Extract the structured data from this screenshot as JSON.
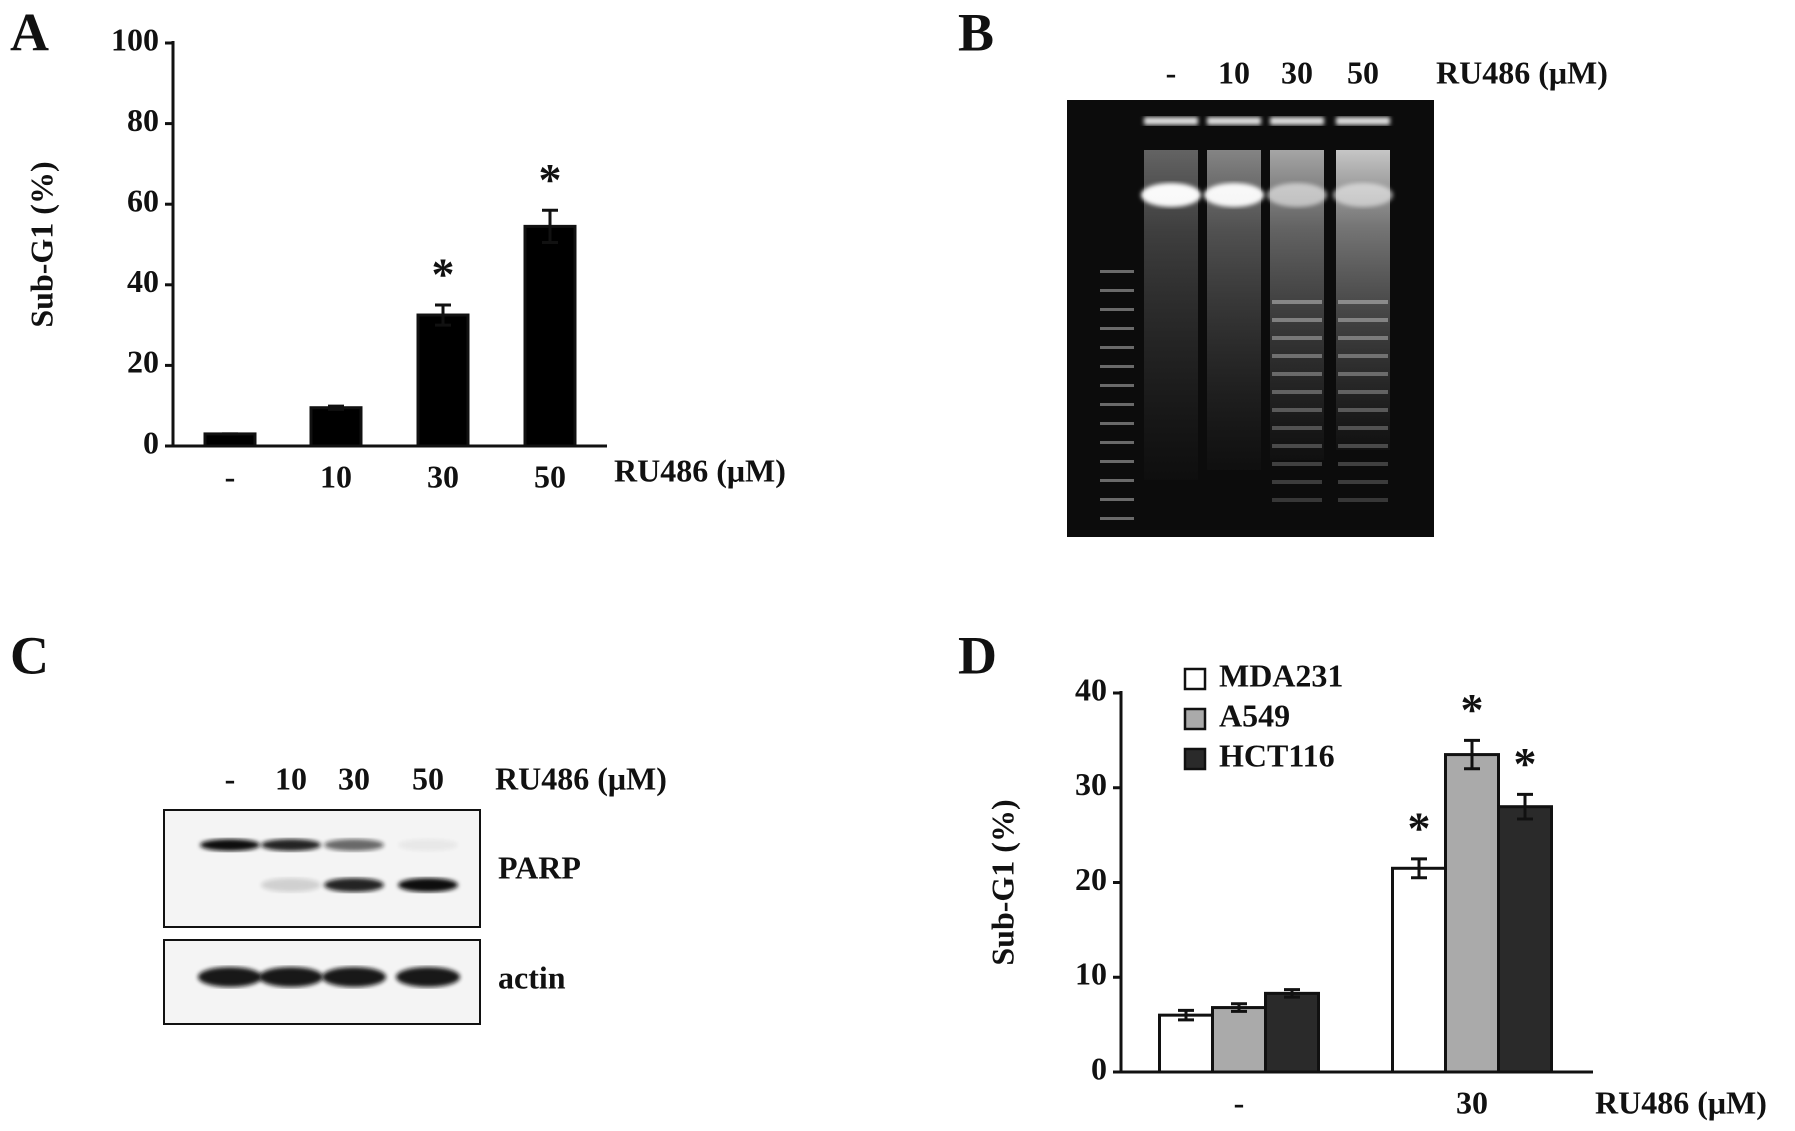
{
  "chart_data": [
    {
      "type": "bar",
      "panel": "A",
      "ylabel": "Sub-G1 (%)",
      "xlabel": "RU486 (μM)",
      "categories": [
        "-",
        "10",
        "30",
        "50"
      ],
      "values": [
        3,
        9.5,
        32.5,
        54.5
      ],
      "errors": [
        0,
        0.4,
        2.5,
        4
      ],
      "significance": [
        null,
        null,
        "*",
        "*"
      ],
      "color": "#000000",
      "ylim": [
        0,
        100
      ],
      "yticks": [
        0,
        20,
        40,
        60,
        80,
        100
      ]
    },
    {
      "type": "bar",
      "panel": "D",
      "ylabel": "Sub-G1 (%)",
      "xlabel": "RU486 (μM)",
      "categories": [
        "-",
        "30"
      ],
      "series": [
        {
          "name": "MDA231",
          "color": "#ffffff",
          "values": [
            6,
            21.5
          ],
          "errors": [
            0.5,
            1
          ],
          "significance": [
            null,
            "*"
          ]
        },
        {
          "name": "A549",
          "color": "#aaaaaa",
          "values": [
            6.8,
            33.5
          ],
          "errors": [
            0.4,
            1.5
          ],
          "significance": [
            null,
            "*"
          ]
        },
        {
          "name": "HCT116",
          "color": "#2a2a2a",
          "values": [
            8.3,
            28
          ],
          "errors": [
            0.4,
            1.3
          ],
          "significance": [
            null,
            "*"
          ]
        }
      ],
      "ylim": [
        0,
        40
      ],
      "yticks": [
        0,
        10,
        20,
        30,
        40
      ]
    }
  ],
  "gel": {
    "panel": "B",
    "lanes": [
      "-",
      "10",
      "30",
      "50"
    ],
    "treatment": "RU486 (μM)"
  },
  "blot": {
    "panel": "C",
    "lanes": [
      "-",
      "10",
      "30",
      "50"
    ],
    "treatment": "RU486 (μM)",
    "bands": [
      "PARP",
      "actin"
    ]
  }
}
